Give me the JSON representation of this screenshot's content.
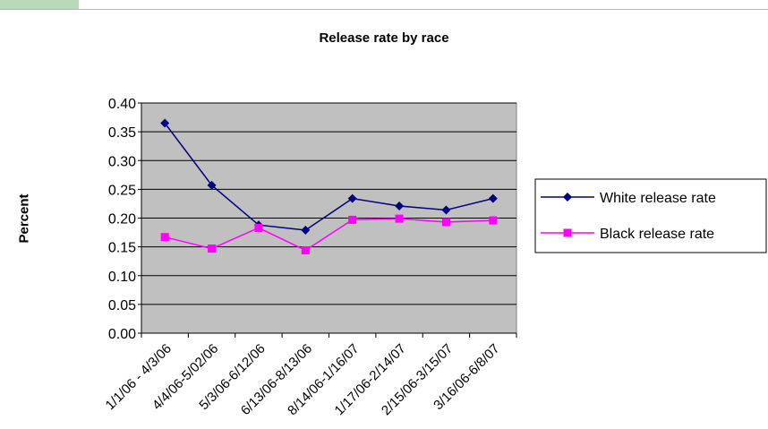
{
  "header": {
    "accent_color": "#b7dab8"
  },
  "chart_data": {
    "type": "line",
    "title": "Release rate by race",
    "xlabel": "",
    "ylabel": "Percent",
    "ylim": [
      0,
      0.4
    ],
    "yticks": [
      "0.00",
      "0.05",
      "0.10",
      "0.15",
      "0.20",
      "0.25",
      "0.30",
      "0.35",
      "0.40"
    ],
    "categories": [
      "1/1/06 - 4/3/06",
      "4/4/06-5/02/06",
      "5/3/06-6/12/06",
      "6/13/06-8/13/06",
      "8/14/06-1/16/07",
      "1/17/06-2/14/07",
      "2/15/06-3/15/07",
      "3/16/06-6/8/07"
    ],
    "series": [
      {
        "name": "White release rate",
        "color": "#000080",
        "marker": "diamond",
        "values": [
          0.365,
          0.257,
          0.188,
          0.179,
          0.234,
          0.221,
          0.214,
          0.234
        ]
      },
      {
        "name": "Black release rate",
        "color": "#ff00ff",
        "marker": "square",
        "values": [
          0.167,
          0.147,
          0.183,
          0.144,
          0.197,
          0.199,
          0.193,
          0.196
        ]
      }
    ],
    "grid": true,
    "legend": "right",
    "plot_background": "#c0c0c0"
  }
}
